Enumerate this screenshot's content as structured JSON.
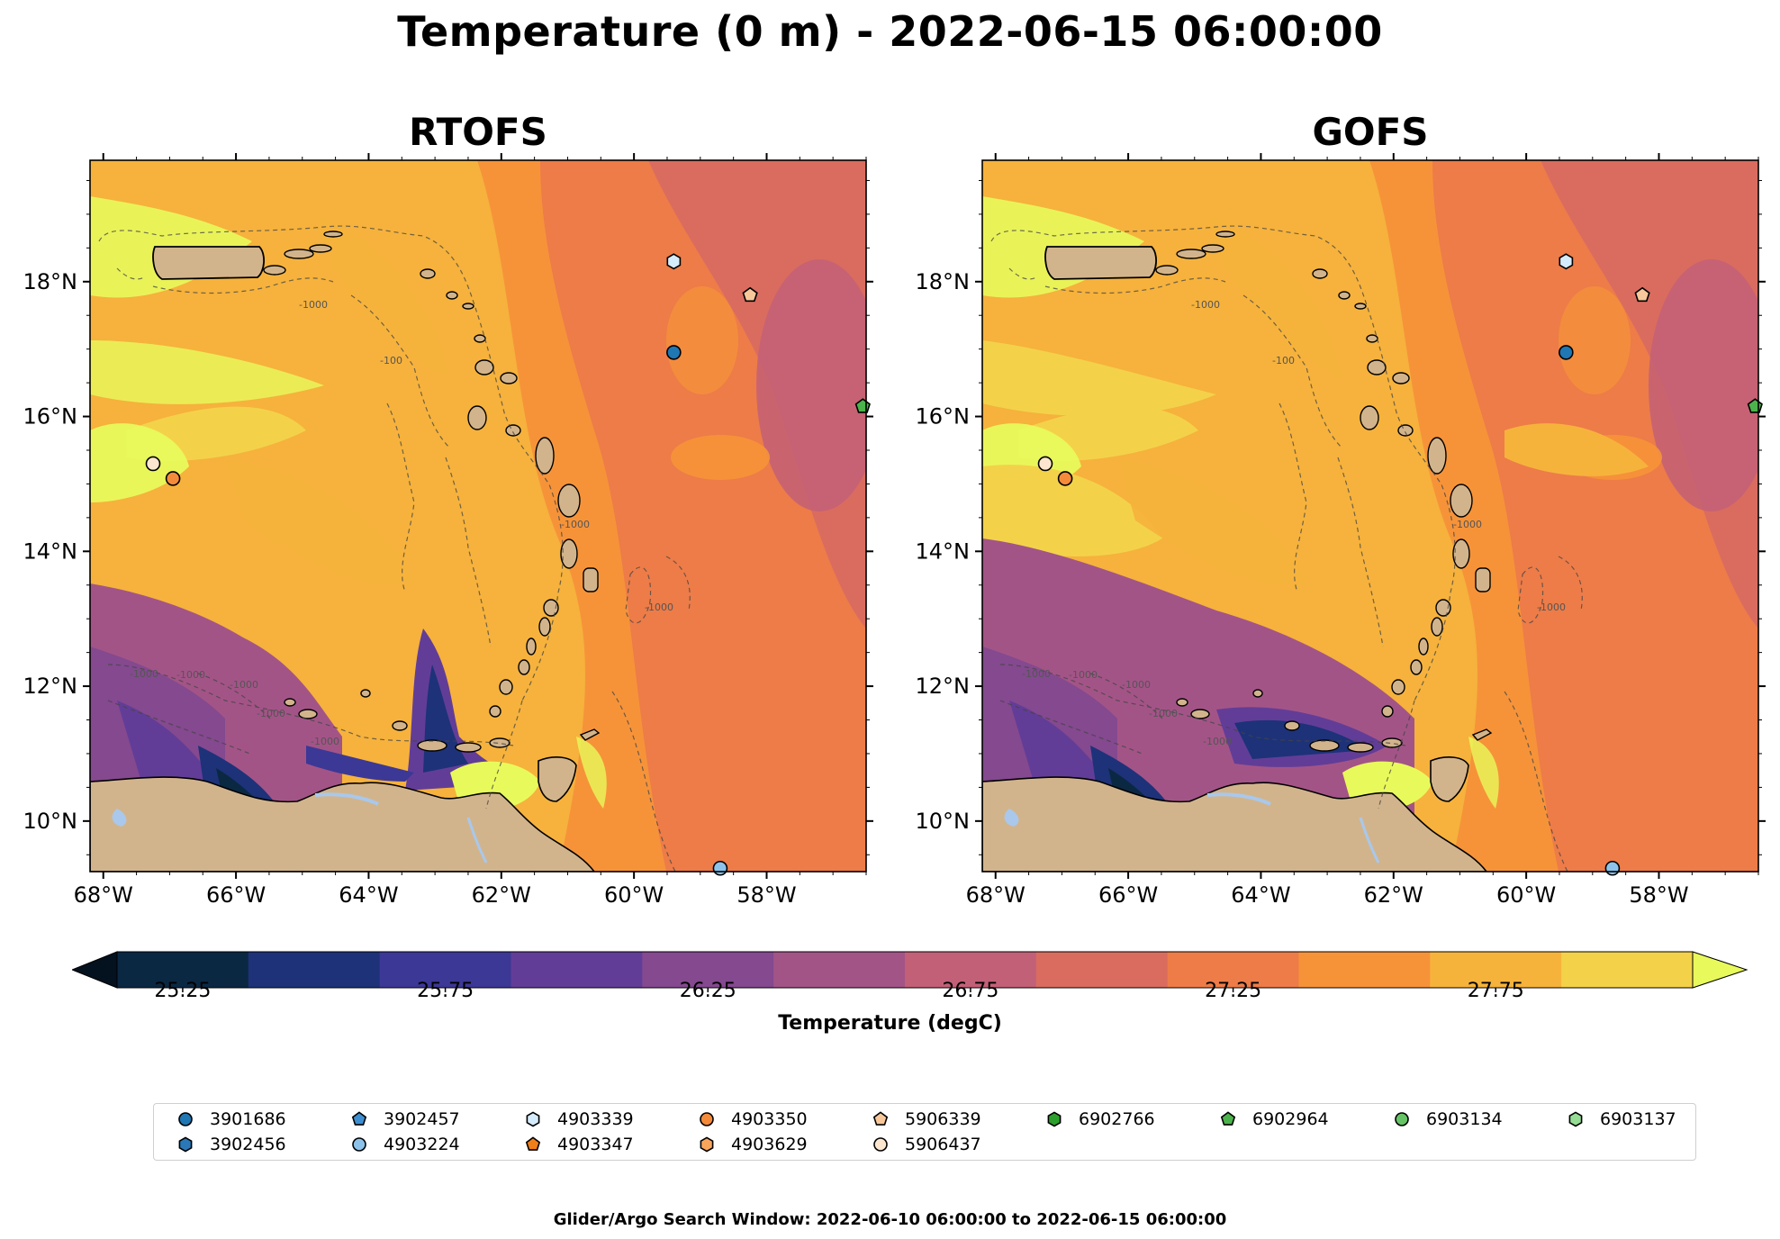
{
  "title": "Temperature (0 m) - 2022-06-15 06:00:00",
  "panels": [
    {
      "title": "RTOFS",
      "variant": "rtofs"
    },
    {
      "title": "GOFS",
      "variant": "gofs"
    }
  ],
  "map": {
    "lon_range": [
      -68.2,
      -56.5
    ],
    "lat_range": [
      9.25,
      19.8
    ],
    "lon_ticks": [
      -68,
      -66,
      -64,
      -62,
      -60,
      -58
    ],
    "lon_tick_labels": [
      "68°W",
      "66°W",
      "64°W",
      "62°W",
      "60°W",
      "58°W"
    ],
    "lat_ticks": [
      10,
      12,
      14,
      16,
      18
    ],
    "lat_tick_labels": [
      "10°N",
      "12°N",
      "14°N",
      "16°N",
      "18°N"
    ],
    "land_color": "#d2b48c",
    "water_color": "#a9c8ec",
    "isobath_label": "-1000",
    "isobath_label_short": "-100"
  },
  "colorbar": {
    "label": "Temperature (degC)",
    "ticks": [
      "25.25",
      "25.75",
      "26.25",
      "26.75",
      "27.25",
      "27.75"
    ],
    "colors": [
      "#0b2843",
      "#1d3279",
      "#3c3895",
      "#623d97",
      "#84498f",
      "#a35487",
      "#c26077",
      "#da6c5f",
      "#ed7c48",
      "#f69339",
      "#f6b33c",
      "#f3d24a"
    ],
    "extend_low_color": "#04111f",
    "extend_high_color": "#e8fa5b"
  },
  "legend": [
    {
      "label": "3901686",
      "marker": "circle",
      "color": "#1f77b4"
    },
    {
      "label": "3902457",
      "marker": "pentagon",
      "color": "#3d8fd1"
    },
    {
      "label": "4903339",
      "marker": "hexagon",
      "color": "#d4ecfb"
    },
    {
      "label": "4903350",
      "marker": "circle",
      "color": "#f48b3a"
    },
    {
      "label": "5906339",
      "marker": "pentagon",
      "color": "#f9c89a"
    },
    {
      "label": "6902766",
      "marker": "hexagon",
      "color": "#2ca02c"
    },
    {
      "label": "6902964",
      "marker": "pentagon",
      "color": "#4cb34c"
    },
    {
      "label": "6903134",
      "marker": "circle",
      "color": "#66c466"
    },
    {
      "label": "6903137",
      "marker": "hexagon",
      "color": "#95dd95"
    },
    {
      "label": "3902456",
      "marker": "hexagon",
      "color": "#2a78b8"
    },
    {
      "label": "4903224",
      "marker": "circle",
      "color": "#8dc3eb"
    },
    {
      "label": "4903347",
      "marker": "pentagon",
      "color": "#f07f1a"
    },
    {
      "label": "4903629",
      "marker": "hexagon",
      "color": "#f8a55c"
    },
    {
      "label": "5906437",
      "marker": "circle",
      "color": "#fde6cf"
    }
  ],
  "floats": [
    {
      "id": "4903339",
      "lon": -59.4,
      "lat": 18.3,
      "marker": "hexagon",
      "color": "#d4ecfb"
    },
    {
      "id": "5906339",
      "lon": -58.25,
      "lat": 17.8,
      "marker": "pentagon",
      "color": "#f9c89a"
    },
    {
      "id": "3901686",
      "lon": -59.4,
      "lat": 16.95,
      "marker": "circle",
      "color": "#1f77b4"
    },
    {
      "id": "6902964",
      "lon": -56.55,
      "lat": 16.15,
      "marker": "pentagon",
      "color": "#4cb34c"
    },
    {
      "id": "5906437",
      "lon": -67.25,
      "lat": 15.3,
      "marker": "circle",
      "color": "#fde6cf"
    },
    {
      "id": "4903350",
      "lon": -66.95,
      "lat": 15.08,
      "marker": "circle",
      "color": "#f48b3a"
    },
    {
      "id": "4903224",
      "lon": -58.7,
      "lat": 9.3,
      "marker": "circle",
      "color": "#8dc3eb"
    }
  ],
  "footer": "Glider/Argo Search Window: 2022-06-10 06:00:00 to 2022-06-15 06:00:00"
}
